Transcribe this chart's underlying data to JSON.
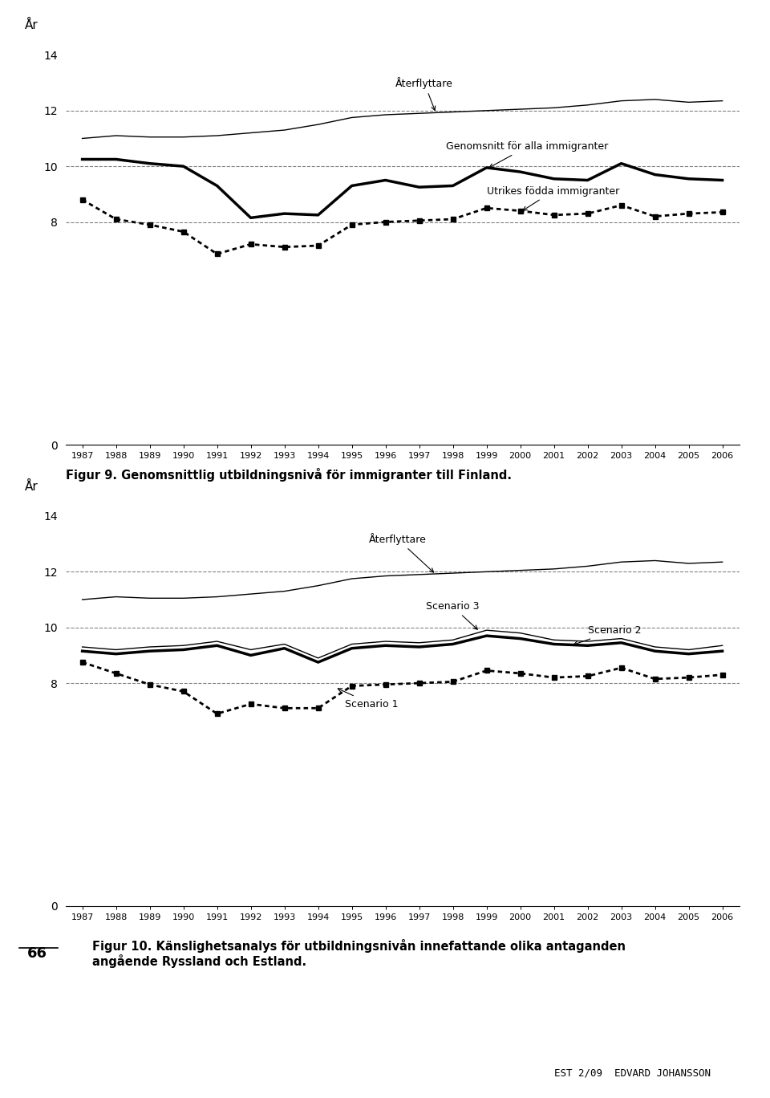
{
  "years": [
    1987,
    1988,
    1989,
    1990,
    1991,
    1992,
    1993,
    1994,
    1995,
    1996,
    1997,
    1998,
    1999,
    2000,
    2001,
    2002,
    2003,
    2004,
    2005,
    2006
  ],
  "chart1": {
    "aterflyttare": [
      11.0,
      11.1,
      11.05,
      11.05,
      11.1,
      11.2,
      11.3,
      11.5,
      11.75,
      11.85,
      11.9,
      11.95,
      12.0,
      12.05,
      12.1,
      12.2,
      12.35,
      12.4,
      12.3,
      12.35
    ],
    "genomsnitt": [
      10.25,
      10.25,
      10.1,
      10.0,
      9.3,
      8.15,
      8.3,
      8.25,
      9.3,
      9.5,
      9.25,
      9.3,
      9.95,
      9.8,
      9.55,
      9.5,
      10.1,
      9.7,
      9.55,
      9.5
    ],
    "utrikes": [
      8.8,
      8.1,
      7.9,
      7.65,
      6.85,
      7.2,
      7.1,
      7.15,
      7.9,
      8.0,
      8.05,
      8.1,
      8.5,
      8.4,
      8.25,
      8.3,
      8.6,
      8.2,
      8.3,
      8.35
    ]
  },
  "chart2": {
    "aterflyttare": [
      11.0,
      11.1,
      11.05,
      11.05,
      11.1,
      11.2,
      11.3,
      11.5,
      11.75,
      11.85,
      11.9,
      11.95,
      12.0,
      12.05,
      12.1,
      12.2,
      12.35,
      12.4,
      12.3,
      12.35
    ],
    "scenario3": [
      9.3,
      9.2,
      9.3,
      9.35,
      9.5,
      9.2,
      9.4,
      8.9,
      9.4,
      9.5,
      9.45,
      9.55,
      9.9,
      9.8,
      9.55,
      9.5,
      9.6,
      9.3,
      9.2,
      9.35
    ],
    "scenario2": [
      9.15,
      9.05,
      9.15,
      9.2,
      9.35,
      9.0,
      9.25,
      8.75,
      9.25,
      9.35,
      9.3,
      9.4,
      9.7,
      9.6,
      9.4,
      9.35,
      9.45,
      9.15,
      9.05,
      9.15
    ],
    "scenario1": [
      8.75,
      8.35,
      7.95,
      7.7,
      6.9,
      7.25,
      7.1,
      7.1,
      7.9,
      7.95,
      8.0,
      8.05,
      8.45,
      8.35,
      8.2,
      8.25,
      8.55,
      8.15,
      8.2,
      8.3
    ]
  },
  "caption1": "Figur 9. Genomsnittlig utbildningsnivå för immigranter till Finland.",
  "caption2": "Figur 10. Känslighetsanalys för utbildningsnivån innefattande olika antaganden\nangående Ryssland och Estland.",
  "page_number": "66",
  "footer": "EST 2/09  EDVARD JOHANSSON",
  "ylabel": "År",
  "background_color": "#ffffff"
}
